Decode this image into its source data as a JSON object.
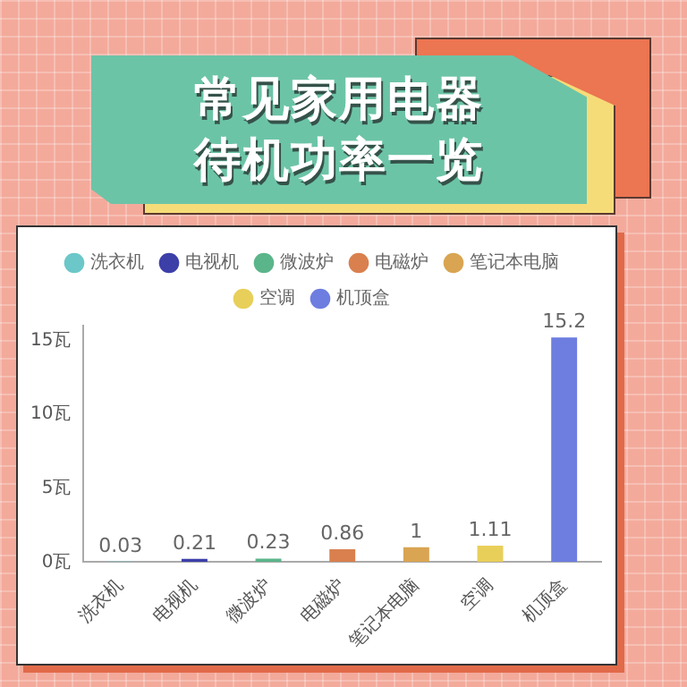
{
  "chart_data": {
    "type": "bar",
    "title": "常见家用电器待机功率一览",
    "categories": [
      "洗衣机",
      "电视机",
      "微波炉",
      "电磁炉",
      "笔记本电脑",
      "空调",
      "机顶盒"
    ],
    "series": [
      {
        "name": "洗衣机",
        "color": "#6cc7c9",
        "values": [
          0.03,
          null,
          null,
          null,
          null,
          null,
          null
        ]
      },
      {
        "name": "电视机",
        "color": "#3c3fa8",
        "values": [
          null,
          0.21,
          null,
          null,
          null,
          null,
          null
        ]
      },
      {
        "name": "微波炉",
        "color": "#5bb58a",
        "values": [
          null,
          null,
          0.23,
          null,
          null,
          null,
          null
        ]
      },
      {
        "name": "电磁炉",
        "color": "#d9804e",
        "values": [
          null,
          null,
          null,
          0.86,
          null,
          null,
          null
        ]
      },
      {
        "name": "笔记本电脑",
        "color": "#d9a552",
        "values": [
          null,
          null,
          null,
          null,
          1,
          null,
          null
        ]
      },
      {
        "name": "空调",
        "color": "#e8cf5a",
        "values": [
          null,
          null,
          null,
          null,
          null,
          1.11,
          null
        ]
      },
      {
        "name": "机顶盒",
        "color": "#6d7ee0",
        "values": [
          null,
          null,
          null,
          null,
          null,
          null,
          15.2
        ]
      }
    ],
    "ylim": [
      0,
      16
    ],
    "yticks": [
      {
        "value": 0,
        "label": "0瓦"
      },
      {
        "value": 5,
        "label": "5瓦"
      },
      {
        "value": 10,
        "label": "10瓦"
      },
      {
        "value": 15,
        "label": "15瓦"
      }
    ],
    "grid": false,
    "legend": "top",
    "data_labels": true
  }
}
